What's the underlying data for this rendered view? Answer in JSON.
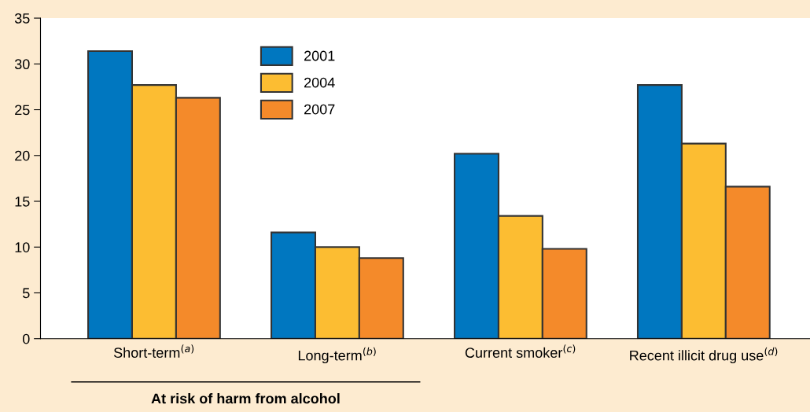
{
  "chart_data": {
    "type": "bar",
    "categories": [
      "Short-term$^{(a)}$",
      "Long-term$^{(b)}$",
      "Current smoker$^{(c)}$",
      "Recent illicit drug use$^{(d)}$"
    ],
    "series": [
      {
        "name": "2001",
        "color": "#0077c0",
        "values": [
          31.4,
          11.6,
          20.2,
          27.7
        ]
      },
      {
        "name": "2004",
        "color": "#fcbd32",
        "values": [
          27.7,
          10.0,
          13.4,
          21.3
        ]
      },
      {
        "name": "2007",
        "color": "#f48a2a",
        "values": [
          26.3,
          8.8,
          9.8,
          16.6
        ]
      }
    ],
    "ylim": [
      0,
      35
    ],
    "yticks": [
      0,
      5,
      10,
      15,
      20,
      25,
      30,
      35
    ],
    "grid": false,
    "legend": "top left",
    "annotations": [
      "At risk of harm from alcohol"
    ]
  }
}
